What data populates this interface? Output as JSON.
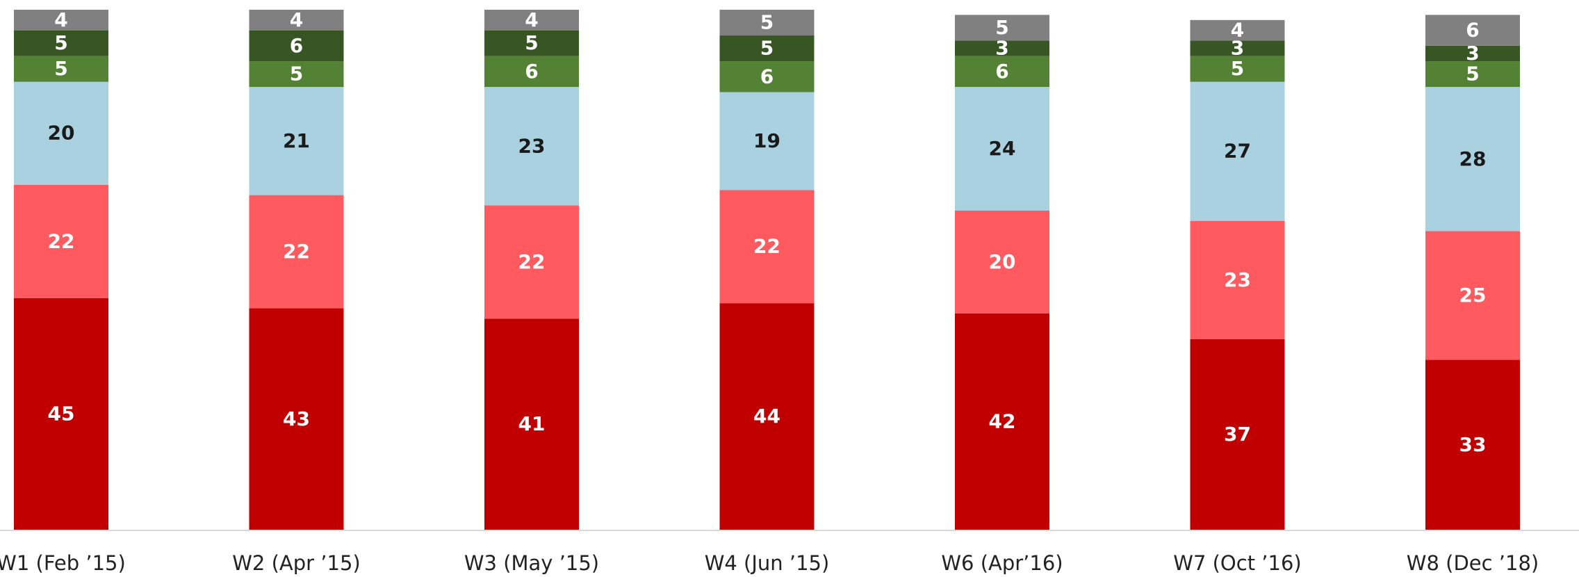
{
  "chart_data": {
    "type": "stacked_bar",
    "categories": [
      "W1 (Feb ’15)",
      "W2 (Apr ’15)",
      "W3 (May ’15)",
      "W4 (Jun ’15)",
      "W6 (Apr’16)",
      "W7 (Oct ’16)",
      "W8 (Dec ’18)"
    ],
    "series": [
      {
        "color": "#c00000",
        "label_color": "#ffffff",
        "values": [
          45,
          43,
          41,
          44,
          42,
          37,
          33
        ]
      },
      {
        "color": "#ff5a5f",
        "label_color": "#ffffff",
        "values": [
          22,
          22,
          22,
          22,
          20,
          23,
          25
        ]
      },
      {
        "color": "#a9d1e0",
        "label_color": "#1a1a1a",
        "values": [
          20,
          21,
          23,
          19,
          24,
          27,
          28
        ]
      },
      {
        "color": "#548235",
        "label_color": "#ffffff",
        "values": [
          5,
          5,
          6,
          6,
          6,
          5,
          5
        ]
      },
      {
        "color": "#375623",
        "label_color": "#ffffff",
        "values": [
          5,
          6,
          5,
          5,
          3,
          3,
          3
        ]
      },
      {
        "color": "#808080",
        "label_color": "#ffffff",
        "values": [
          4,
          4,
          4,
          5,
          5,
          4,
          6
        ]
      }
    ],
    "ylim": [
      0,
      101
    ]
  }
}
